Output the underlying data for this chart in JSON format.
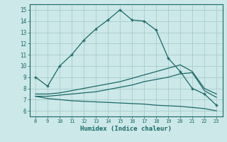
{
  "xlabel": "Humidex (Indice chaleur)",
  "bg_color": "#cce8e8",
  "grid_color": "#aacccc",
  "line_color": "#1a6868",
  "xlim": [
    7.5,
    23.5
  ],
  "ylim": [
    5.5,
    15.5
  ],
  "xticks": [
    8,
    9,
    10,
    11,
    12,
    13,
    14,
    15,
    16,
    17,
    18,
    19,
    20,
    21,
    22,
    23
  ],
  "yticks": [
    6,
    7,
    8,
    9,
    10,
    11,
    12,
    13,
    14,
    15
  ],
  "main_x": [
    8,
    9,
    10,
    11,
    12,
    13,
    14,
    15,
    16,
    17,
    18,
    19,
    20,
    21,
    22,
    23
  ],
  "main_y": [
    9.0,
    8.2,
    10.0,
    11.0,
    12.3,
    13.3,
    14.1,
    15.0,
    14.1,
    14.0,
    13.2,
    10.7,
    9.5,
    8.0,
    7.5,
    6.5
  ],
  "upper_x": [
    8,
    9,
    10,
    11,
    12,
    13,
    14,
    15,
    16,
    17,
    18,
    19,
    20,
    21,
    22,
    23
  ],
  "upper_y": [
    7.5,
    7.5,
    7.6,
    7.8,
    8.0,
    8.2,
    8.4,
    8.6,
    8.9,
    9.2,
    9.5,
    9.8,
    10.1,
    9.5,
    8.0,
    7.5
  ],
  "mid_x": [
    8,
    9,
    10,
    11,
    12,
    13,
    14,
    15,
    16,
    17,
    18,
    19,
    20,
    21,
    22,
    23
  ],
  "mid_y": [
    7.3,
    7.3,
    7.4,
    7.5,
    7.6,
    7.7,
    7.9,
    8.1,
    8.3,
    8.6,
    8.8,
    9.0,
    9.3,
    9.4,
    7.8,
    7.2
  ],
  "lower_x": [
    8,
    9,
    10,
    11,
    12,
    13,
    14,
    15,
    16,
    17,
    18,
    19,
    20,
    21,
    22,
    23
  ],
  "lower_y": [
    7.3,
    7.1,
    7.0,
    6.9,
    6.85,
    6.8,
    6.75,
    6.7,
    6.65,
    6.6,
    6.5,
    6.45,
    6.4,
    6.3,
    6.2,
    6.0
  ]
}
